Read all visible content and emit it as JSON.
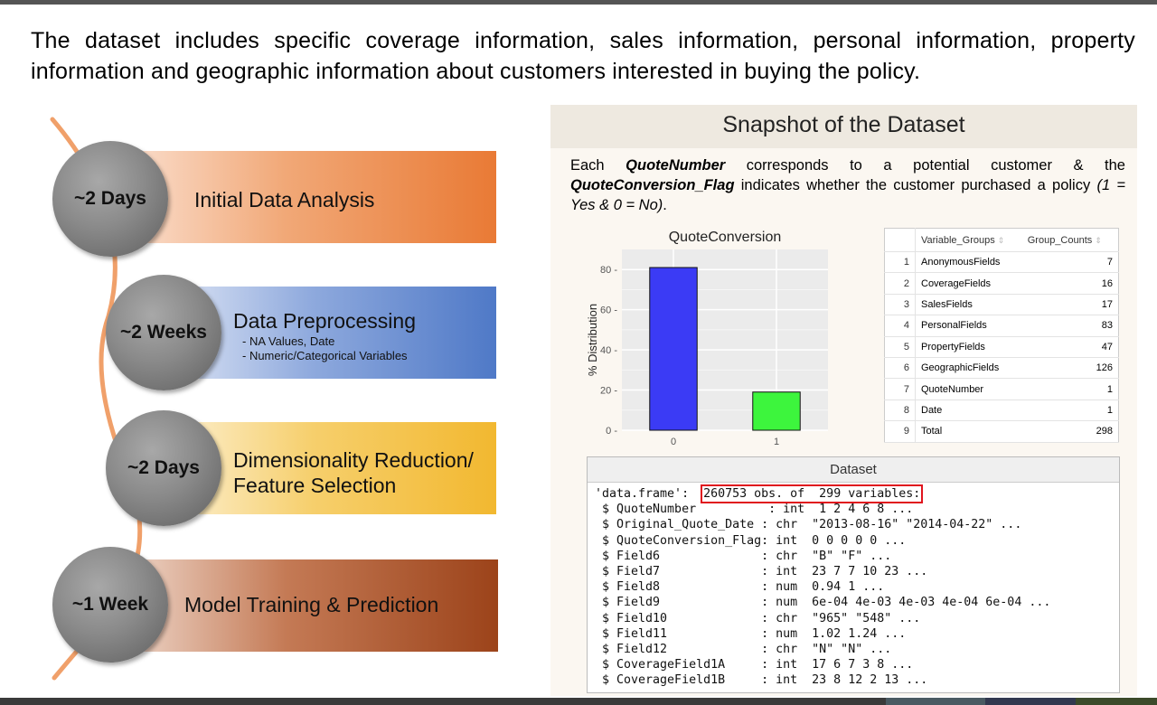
{
  "intro_text": "The dataset includes specific coverage information, sales information, personal information, property information and geographic information about customers interested in buying the policy.",
  "colors": {
    "curve": "#f0a06a",
    "step1": "#e97a35",
    "step2": "#4f79c7",
    "step3": "#f2b830",
    "step4": "#9c431a",
    "bar0": "#3b3bf5",
    "bar1": "#3df53d",
    "highlight": "#e0141e"
  },
  "timeline": {
    "steps": [
      {
        "duration": "~2 Days",
        "title": "Initial Data Analysis",
        "subs": []
      },
      {
        "duration": "~2 Weeks",
        "title": "Data Preprocessing",
        "subs": [
          "- NA Values, Date",
          "- Numeric/Categorical Variables"
        ]
      },
      {
        "duration": "~2 Days",
        "title": "Dimensionality Reduction/",
        "title2": "Feature Selection",
        "subs": []
      },
      {
        "duration": "~1 Week",
        "title": "Model Training & Prediction",
        "subs": []
      }
    ]
  },
  "panel": {
    "title": "Snapshot of the Dataset",
    "desc_1": "Each ",
    "desc_b1": "QuoteNumber",
    "desc_2": " corresponds to a potential customer & the ",
    "desc_b2": "QuoteConversion_Flag",
    "desc_3": " indicates whether the customer purchased a policy ",
    "desc_4": "(1 = Yes & 0 = No)",
    "desc_5": "."
  },
  "chart_data": {
    "type": "bar",
    "title": "QuoteConversion",
    "ylabel": "% Distribution",
    "xlabel": "",
    "categories": [
      "0",
      "1"
    ],
    "values": [
      81,
      19
    ],
    "ylim": [
      0,
      90
    ],
    "yticks": [
      0,
      20,
      40,
      60,
      80
    ],
    "grid": true
  },
  "table": {
    "headers": [
      "Variable_Groups",
      "Group_Counts"
    ],
    "rows": [
      {
        "idx": "1",
        "group": "AnonymousFields",
        "count": "7"
      },
      {
        "idx": "2",
        "group": "CoverageFields",
        "count": "16"
      },
      {
        "idx": "3",
        "group": "SalesFields",
        "count": "17"
      },
      {
        "idx": "4",
        "group": "PersonalFields",
        "count": "83"
      },
      {
        "idx": "5",
        "group": "PropertyFields",
        "count": "47"
      },
      {
        "idx": "6",
        "group": "GeographicFields",
        "count": "126"
      },
      {
        "idx": "7",
        "group": "QuoteNumber",
        "count": "1"
      },
      {
        "idx": "8",
        "group": "Date",
        "count": "1"
      },
      {
        "idx": "9",
        "group": "Total",
        "count": "298"
      }
    ]
  },
  "dataset": {
    "title": "Dataset",
    "head_prefix": "'data.frame':  ",
    "head_highlight": "260753 obs. of  299 variables:",
    "lines": [
      " $ QuoteNumber          : int  1 2 4 6 8 ...",
      " $ Original_Quote_Date : chr  \"2013-08-16\" \"2014-04-22\" ...",
      " $ QuoteConversion_Flag: int  0 0 0 0 0 ...",
      " $ Field6              : chr  \"B\" \"F\" ...",
      " $ Field7              : int  23 7 7 10 23 ...",
      " $ Field8              : num  0.94 1 ...",
      " $ Field9              : num  6e-04 4e-03 4e-03 4e-04 6e-04 ...",
      " $ Field10             : chr  \"965\" \"548\" ...",
      " $ Field11             : num  1.02 1.24 ...",
      " $ Field12             : chr  \"N\" \"N\" ...",
      " $ CoverageField1A     : int  17 6 7 3 8 ...",
      " $ CoverageField1B     : int  23 8 12 2 13 ..."
    ]
  }
}
